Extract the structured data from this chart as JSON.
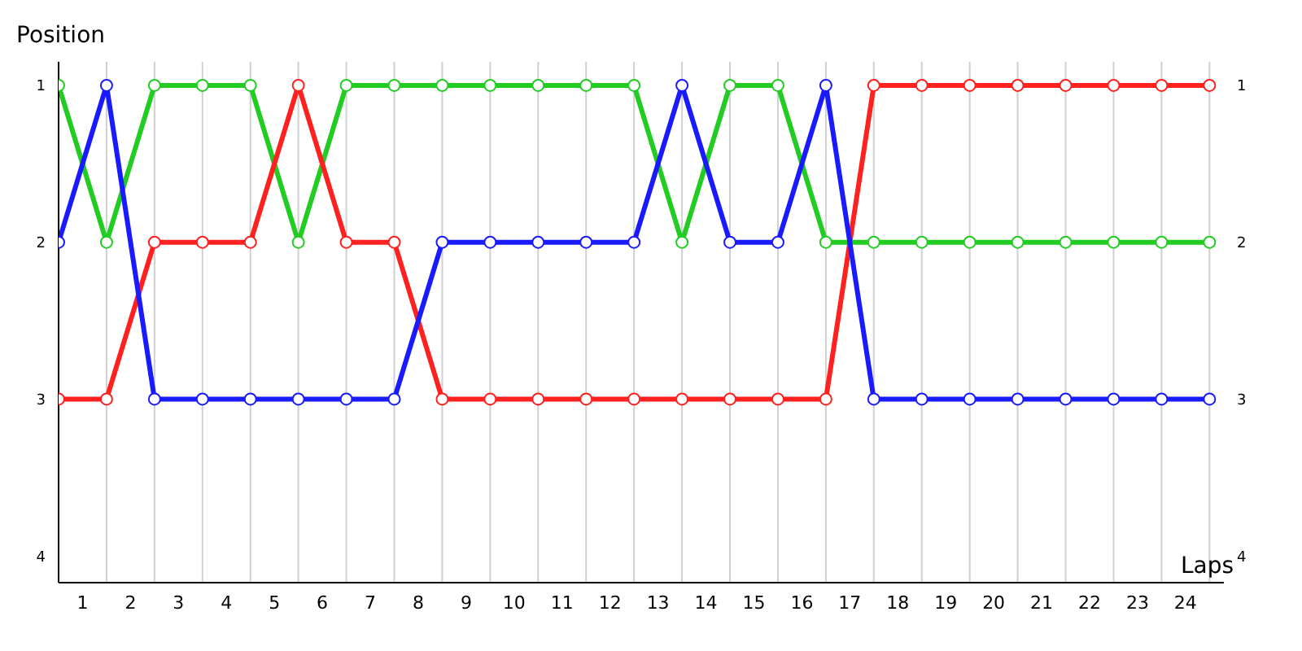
{
  "chart_data": {
    "type": "line",
    "xlabel": "Laps",
    "ylabel": "Position",
    "x": [
      0,
      1,
      2,
      3,
      4,
      5,
      6,
      7,
      8,
      9,
      10,
      11,
      12,
      13,
      14,
      15,
      16,
      17,
      18,
      19,
      20,
      21,
      22,
      23,
      24
    ],
    "series": [
      {
        "color": "#22cc22",
        "values": [
          1,
          2,
          1,
          1,
          1,
          2,
          1,
          1,
          1,
          1,
          1,
          1,
          1,
          2,
          1,
          1,
          2,
          2,
          2,
          2,
          2,
          2,
          2,
          2,
          2
        ]
      },
      {
        "color": "#ff2020",
        "values": [
          3,
          3,
          2,
          2,
          2,
          1,
          2,
          2,
          3,
          3,
          3,
          3,
          3,
          3,
          3,
          3,
          3,
          1,
          1,
          1,
          1,
          1,
          1,
          1,
          1
        ]
      },
      {
        "color": "#1a1aff",
        "values": [
          2,
          1,
          3,
          3,
          3,
          3,
          3,
          3,
          2,
          2,
          2,
          2,
          2,
          1,
          2,
          2,
          1,
          3,
          3,
          3,
          3,
          3,
          3,
          3,
          3
        ]
      }
    ],
    "xlim": [
      0,
      24.3
    ],
    "xticks": [
      {
        "value": 0,
        "label": null
      },
      {
        "value": 0.5,
        "label": "1"
      },
      {
        "value": 1,
        "label": null
      },
      {
        "value": 1.5,
        "label": "2"
      },
      {
        "value": 2,
        "label": null
      },
      {
        "value": 2.5,
        "label": "3"
      },
      {
        "value": 3,
        "label": null
      },
      {
        "value": 3.5,
        "label": "4"
      },
      {
        "value": 4,
        "label": null
      },
      {
        "value": 4.5,
        "label": "5"
      },
      {
        "value": 5,
        "label": null
      },
      {
        "value": 5.5,
        "label": "6"
      },
      {
        "value": 6,
        "label": null
      },
      {
        "value": 6.5,
        "label": "7"
      },
      {
        "value": 7,
        "label": null
      },
      {
        "value": 7.5,
        "label": "8"
      },
      {
        "value": 8,
        "label": null
      },
      {
        "value": 8.5,
        "label": "9"
      },
      {
        "value": 9,
        "label": null
      },
      {
        "value": 9.5,
        "label": "10"
      },
      {
        "value": 10,
        "label": null
      },
      {
        "value": 10.5,
        "label": "11"
      },
      {
        "value": 11,
        "label": null
      },
      {
        "value": 11.5,
        "label": "12"
      },
      {
        "value": 12,
        "label": null
      },
      {
        "value": 12.5,
        "label": "13"
      },
      {
        "value": 13,
        "label": null
      },
      {
        "value": 13.5,
        "label": "14"
      },
      {
        "value": 14,
        "label": null
      },
      {
        "value": 14.5,
        "label": "15"
      },
      {
        "value": 15,
        "label": null
      },
      {
        "value": 15.5,
        "label": "16"
      },
      {
        "value": 16,
        "label": null
      },
      {
        "value": 16.5,
        "label": "17"
      },
      {
        "value": 17,
        "label": null
      },
      {
        "value": 17.5,
        "label": "18"
      },
      {
        "value": 18,
        "label": null
      },
      {
        "value": 18.5,
        "label": "19"
      },
      {
        "value": 19,
        "label": null
      },
      {
        "value": 19.5,
        "label": "20"
      },
      {
        "value": 20,
        "label": null
      },
      {
        "value": 20.5,
        "label": "21"
      },
      {
        "value": 21,
        "label": null
      },
      {
        "value": 21.5,
        "label": "22"
      },
      {
        "value": 22,
        "label": null
      },
      {
        "value": 22.5,
        "label": "23"
      },
      {
        "value": 23,
        "label": null
      },
      {
        "value": 23.5,
        "label": "24"
      },
      {
        "value": 24,
        "label": null
      }
    ],
    "ylim": [
      4.17,
      0.85
    ],
    "yticks": [
      1,
      2,
      3,
      4
    ],
    "y2lim": [
      4.17,
      0.85
    ],
    "y2ticks": [
      1,
      2,
      3,
      4
    ],
    "grid": true,
    "marker": "circle",
    "line_style": "solid"
  }
}
